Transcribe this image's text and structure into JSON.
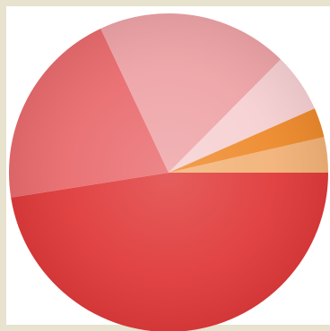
{
  "chart_data": {
    "type": "pie",
    "title": "",
    "legend": "none",
    "labels_shown": false,
    "direction": "clockwise",
    "start": "3 o'clock",
    "slices": [
      {
        "value": 47.5,
        "color": "#e03a3a"
      },
      {
        "value": 20.5,
        "color": "#e96b6e"
      },
      {
        "value": 19.4,
        "color": "#eea3a6"
      },
      {
        "value": 6.0,
        "color": "#f6d0d2"
      },
      {
        "value": 3.0,
        "color": "#ee8a2c"
      },
      {
        "value": 3.6,
        "color": "#f2b277"
      }
    ]
  }
}
